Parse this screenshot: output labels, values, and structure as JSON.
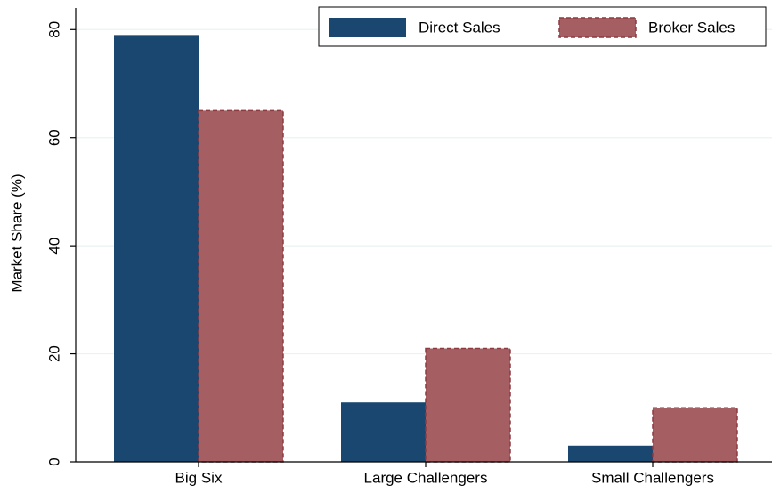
{
  "chart_data": {
    "type": "bar",
    "y_label": "Market Share (%)",
    "categories": [
      "Big Six",
      "Large Challengers",
      "Small Challengers"
    ],
    "series": [
      {
        "name": "Direct Sales",
        "color": "#1a476f",
        "values": [
          79,
          11,
          3
        ]
      },
      {
        "name": "Broker Sales",
        "color": "#a55f62",
        "values": [
          65,
          21,
          10
        ]
      }
    ],
    "ylim": [
      0,
      84
    ],
    "yticks": [
      0,
      20,
      40,
      60,
      80
    ],
    "grid": true,
    "legend": "top-right"
  }
}
